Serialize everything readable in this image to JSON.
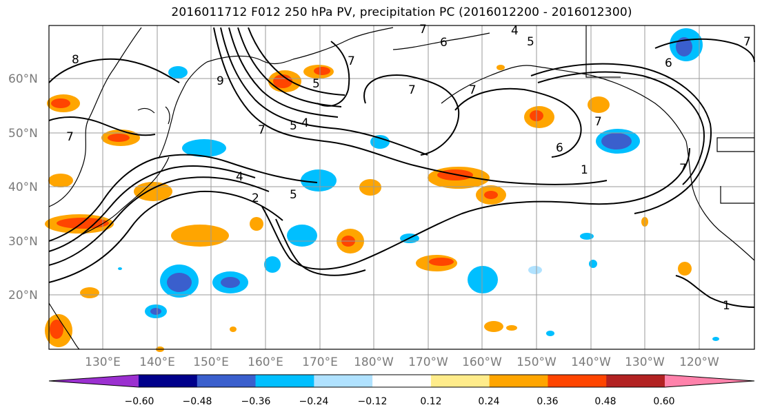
{
  "title": "2016011712 F012 250 hPa PV, precipitation PC (2016012200 - 2016012300)",
  "lat_labels": [
    "60°N",
    "50°N",
    "40°N",
    "30°N",
    "20°N"
  ],
  "lon_labels": [
    "130°E",
    "140°E",
    "150°E",
    "160°E",
    "170°E",
    "180°W",
    "170°W",
    "160°W",
    "150°W",
    "140°W",
    "130°W",
    "120°W"
  ],
  "colorbar": {
    "tick_labels": [
      "−0.60",
      "−0.48",
      "−0.36",
      "−0.24",
      "−0.12",
      "0.12",
      "0.24",
      "0.36",
      "0.48",
      "0.60"
    ],
    "colors": [
      "#9b30d0",
      "#00008b",
      "#3a5fcd",
      "#00bfff",
      "#b0e2ff",
      "#ffffff",
      "#ffec8b",
      "#ffa500",
      "#ff4500",
      "#b22222",
      "#ff82ab"
    ]
  },
  "contour_labels": [
    {
      "text": "8"
    },
    {
      "text": "9"
    },
    {
      "text": "7"
    },
    {
      "text": "7"
    },
    {
      "text": "7"
    },
    {
      "text": "7"
    },
    {
      "text": "4"
    },
    {
      "text": "5"
    },
    {
      "text": "6"
    },
    {
      "text": "6"
    },
    {
      "text": "7"
    },
    {
      "text": "7"
    },
    {
      "text": "5"
    },
    {
      "text": "4"
    },
    {
      "text": "7"
    },
    {
      "text": "5"
    },
    {
      "text": "4"
    },
    {
      "text": "2"
    },
    {
      "text": "5"
    },
    {
      "text": "6"
    },
    {
      "text": "1"
    },
    {
      "text": "1"
    },
    {
      "text": "7"
    },
    {
      "text": "7"
    }
  ]
}
